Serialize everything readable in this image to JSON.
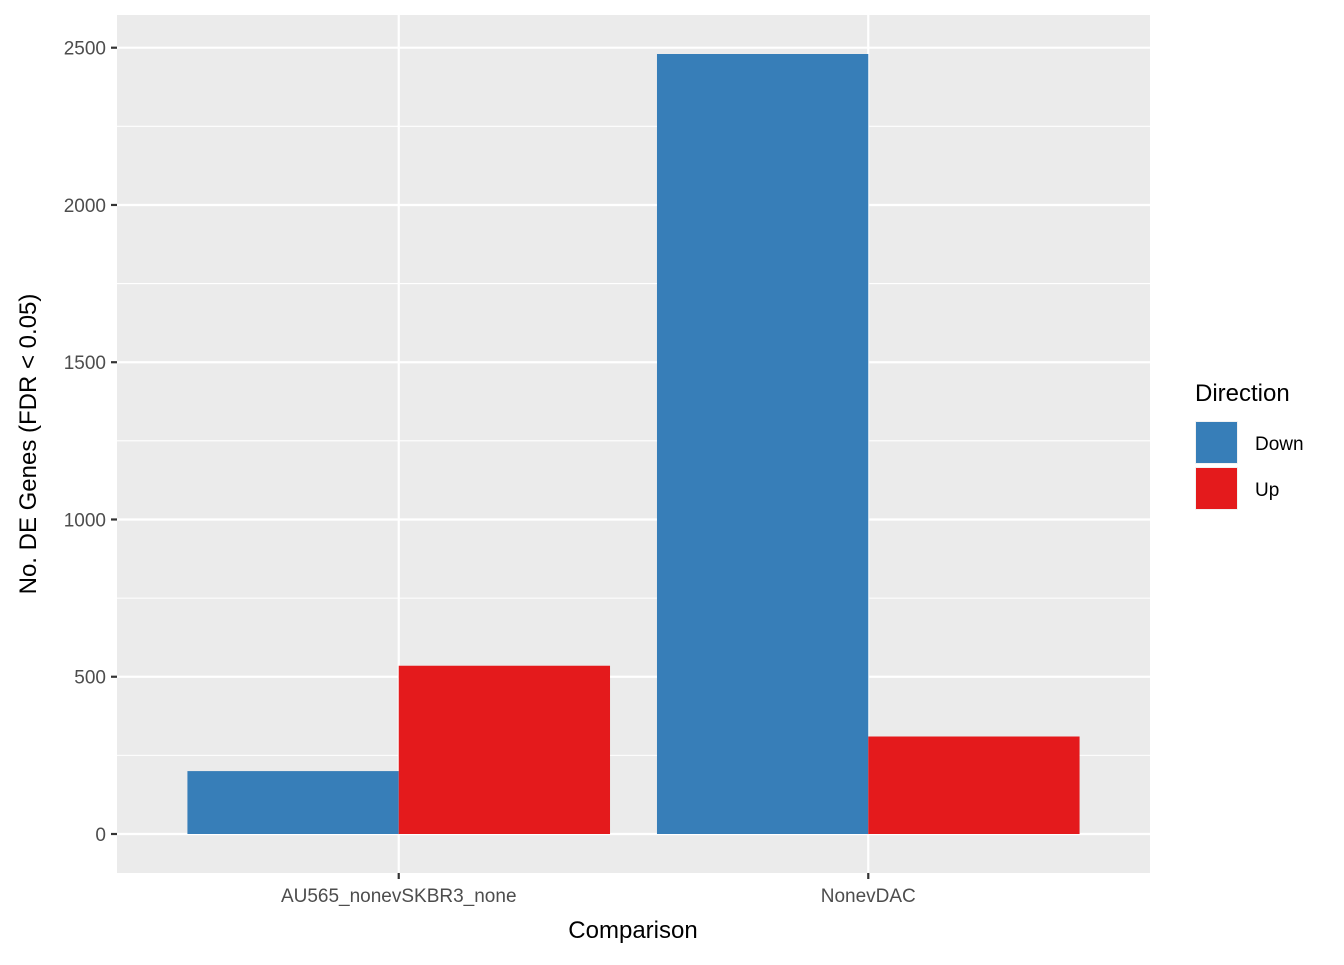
{
  "chart_data": {
    "type": "bar",
    "layout": "grouped",
    "title": "",
    "xlabel": "Comparison",
    "ylabel": "No. DE Genes (FDR < 0.05)",
    "categories": [
      "AU565_nonevSKBR3_none",
      "NonevDAC"
    ],
    "series": [
      {
        "name": "Down",
        "color": "#377EB8",
        "values": [
          200,
          2480
        ]
      },
      {
        "name": "Up",
        "color": "#E41A1C",
        "values": [
          535,
          310
        ]
      }
    ],
    "ylim": [
      -124,
      2604
    ],
    "yticks": [
      0,
      500,
      1000,
      1500,
      2000,
      2500
    ],
    "yminor": [
      250,
      750,
      1250,
      1750,
      2250
    ],
    "grid": true,
    "panel_background": "#EBEBEB",
    "legend": {
      "title": "Direction",
      "position": "right"
    }
  }
}
